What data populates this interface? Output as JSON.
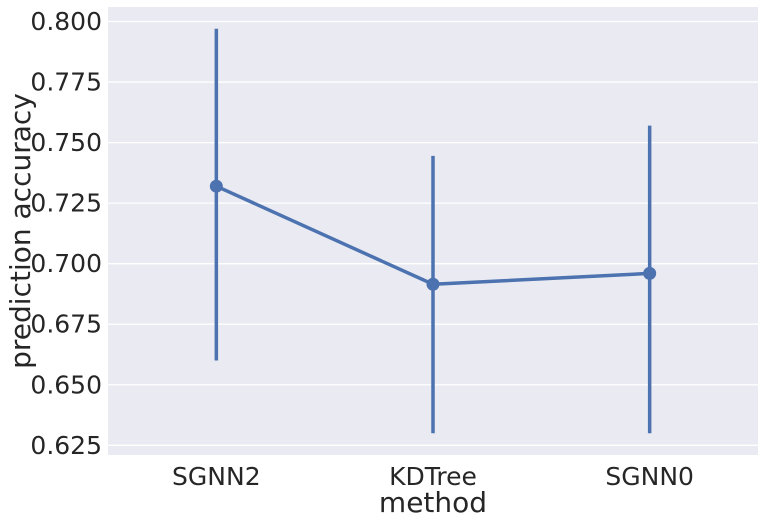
{
  "chart_data": {
    "type": "line",
    "style": "point-plot-with-error-bars",
    "title": "",
    "xlabel": "method",
    "ylabel": "prediction accuracy",
    "categories": [
      "SGNN2",
      "KDTree",
      "SGNN0"
    ],
    "series": [
      {
        "values": [
          0.732,
          0.6915,
          0.696
        ],
        "ci_low": [
          0.66,
          0.63,
          0.63
        ],
        "ci_high": [
          0.797,
          0.7445,
          0.757
        ]
      }
    ],
    "ylim": [
      0.621,
      0.806
    ],
    "yticks": [
      0.625,
      0.65,
      0.675,
      0.7,
      0.725,
      0.75,
      0.775,
      0.8
    ],
    "ytick_labels": [
      "0.625",
      "0.650",
      "0.675",
      "0.700",
      "0.725",
      "0.750",
      "0.775",
      "0.800"
    ],
    "grid": true,
    "legend": "none",
    "colors": {
      "series": "#4c72b0",
      "background": "#eaeaf2",
      "grid": "#ffffff",
      "text": "#262626"
    }
  }
}
